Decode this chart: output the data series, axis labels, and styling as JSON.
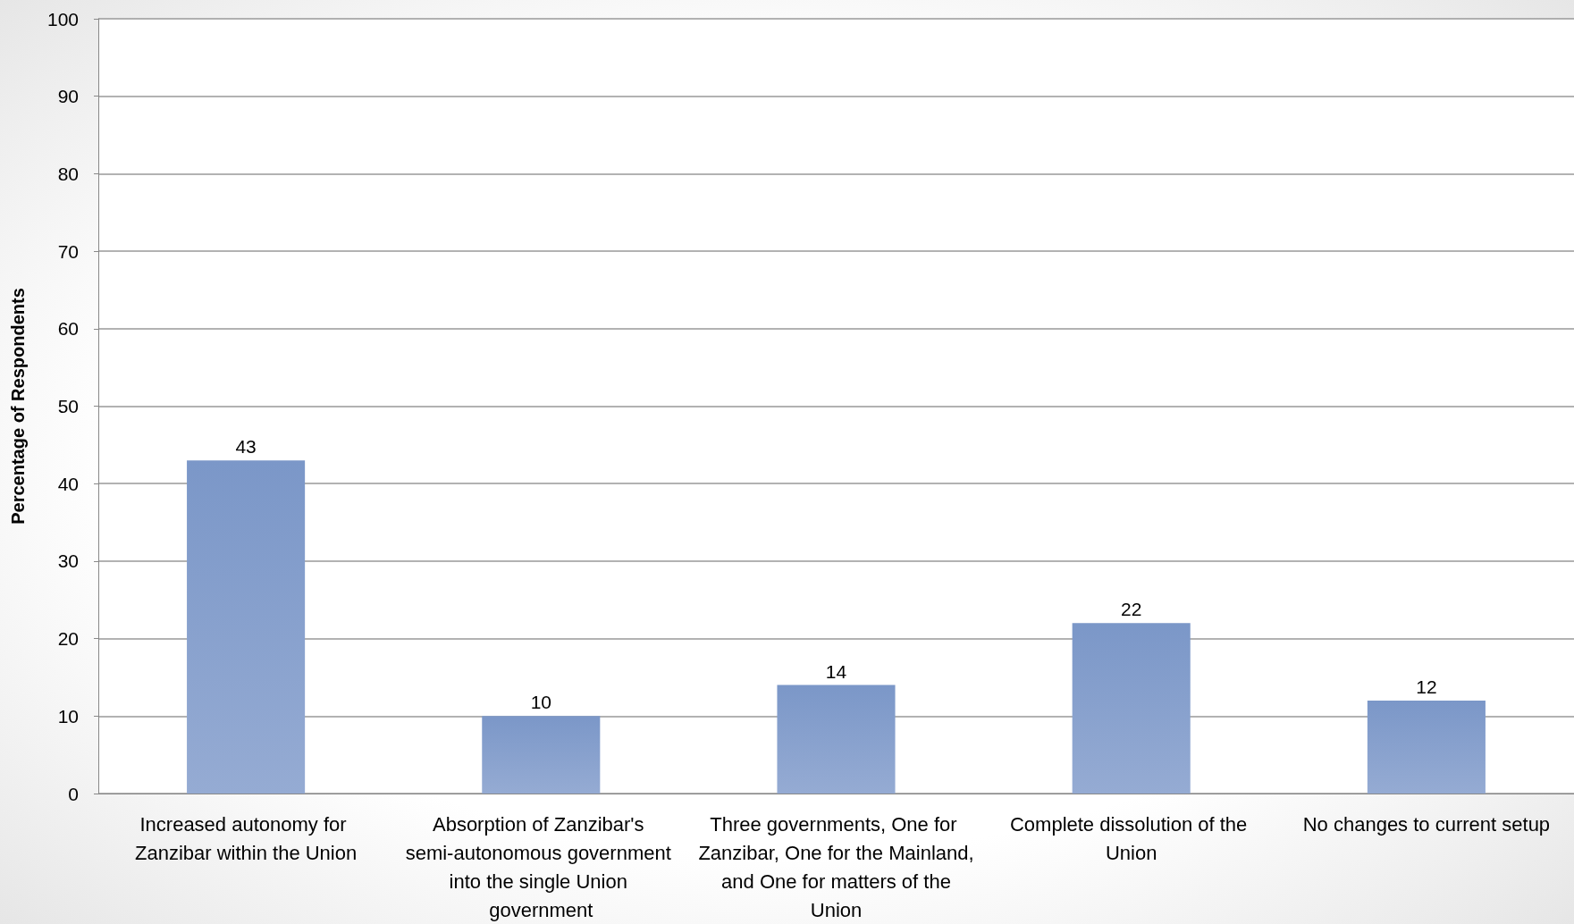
{
  "chart_data": {
    "type": "bar",
    "ylabel": "Percentage of Respondents",
    "categories": [
      "Increased autonomy for Zanzibar within the Union",
      "Absorption of Zanzibar's semi-autonomous government into the single Union government",
      "Three governments, One for Zanzibar, One for the Mainland, and One for matters of the Union",
      "Complete dissolution of the Union",
      "No changes to current setup"
    ],
    "values": [
      43,
      10,
      14,
      22,
      12
    ],
    "color": "#7b97c8",
    "ylim": [
      0,
      100
    ],
    "yticks": [
      0,
      10,
      20,
      30,
      40,
      50,
      60,
      70,
      80,
      90,
      100
    ],
    "grid": "y",
    "data_labels": true
  }
}
